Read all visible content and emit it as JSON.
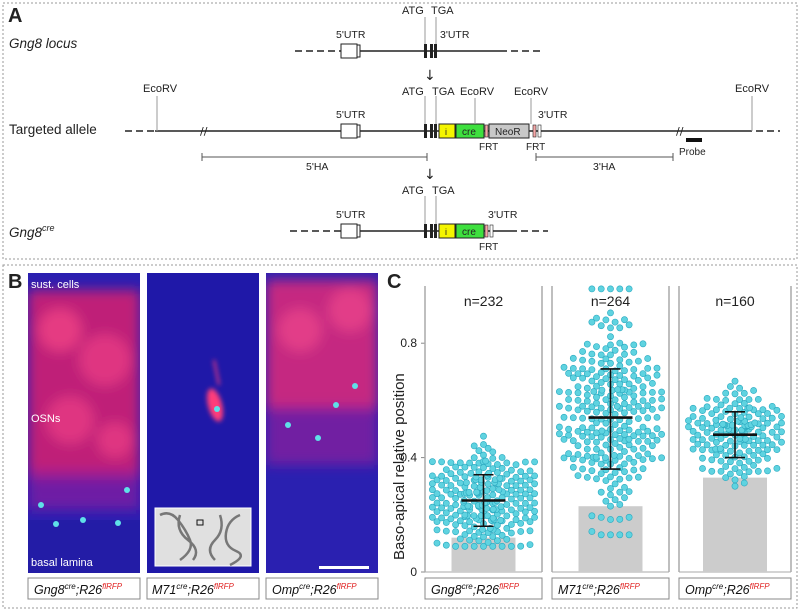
{
  "panels": {
    "a": "A",
    "b": "B",
    "c": "C"
  },
  "panelA": {
    "rows": {
      "locus": "Gng8 locus",
      "targeted": "Targeted allele",
      "cre_name": "Gng8",
      "cre_sup": "cre"
    },
    "atg": "ATG",
    "tga": "TGA",
    "utr5": "5'UTR",
    "utr3": "3'UTR",
    "ecorv": "EcoRV",
    "i": "i",
    "cre": "cre",
    "neor": "NeoR",
    "frt": "FRT",
    "ha5": "5'HA",
    "ha3": "3'HA",
    "probe": "Probe"
  },
  "panelB": {
    "label_sust": "sust. cells",
    "label_osns": "OSNs",
    "label_basal": "basal lamina",
    "captions": [
      {
        "gene": "Gng8",
        "sup1": "cre",
        "reporter": ";R26",
        "sup2": "flRFP"
      },
      {
        "gene": "M71",
        "sup1": "cre",
        "reporter": ";R26",
        "sup2": "flRFP"
      },
      {
        "gene": "Omp",
        "sup1": "cre",
        "reporter": ";R26",
        "sup2": "flRFP"
      }
    ]
  },
  "chart_data": {
    "type": "scatter",
    "ylabel": "Baso-apical relative position",
    "ylim": [
      0,
      1.0
    ],
    "yticks": [
      0,
      0.4,
      0.8
    ],
    "groups": [
      {
        "n_label": "n=232",
        "n": 232,
        "mean": 0.25,
        "sd_low": 0.16,
        "sd_high": 0.34,
        "bar": 0.12,
        "center": 0.25,
        "spread": 0.09,
        "min": 0.09,
        "max": 0.51
      },
      {
        "n_label": "n=264",
        "n": 264,
        "mean": 0.54,
        "sd_low": 0.36,
        "sd_high": 0.71,
        "bar": 0.23,
        "center": 0.54,
        "spread": 0.17,
        "min": 0.13,
        "max": 0.99
      },
      {
        "n_label": "n=160",
        "n": 160,
        "mean": 0.48,
        "sd_low": 0.4,
        "sd_high": 0.56,
        "bar": 0.33,
        "center": 0.48,
        "spread": 0.07,
        "min": 0.3,
        "max": 0.71
      }
    ],
    "colors": {
      "dot": "#5fd3e0",
      "dot_edge": "#2aa9c0",
      "bar": "#cccccc",
      "mean": "#111111"
    }
  }
}
